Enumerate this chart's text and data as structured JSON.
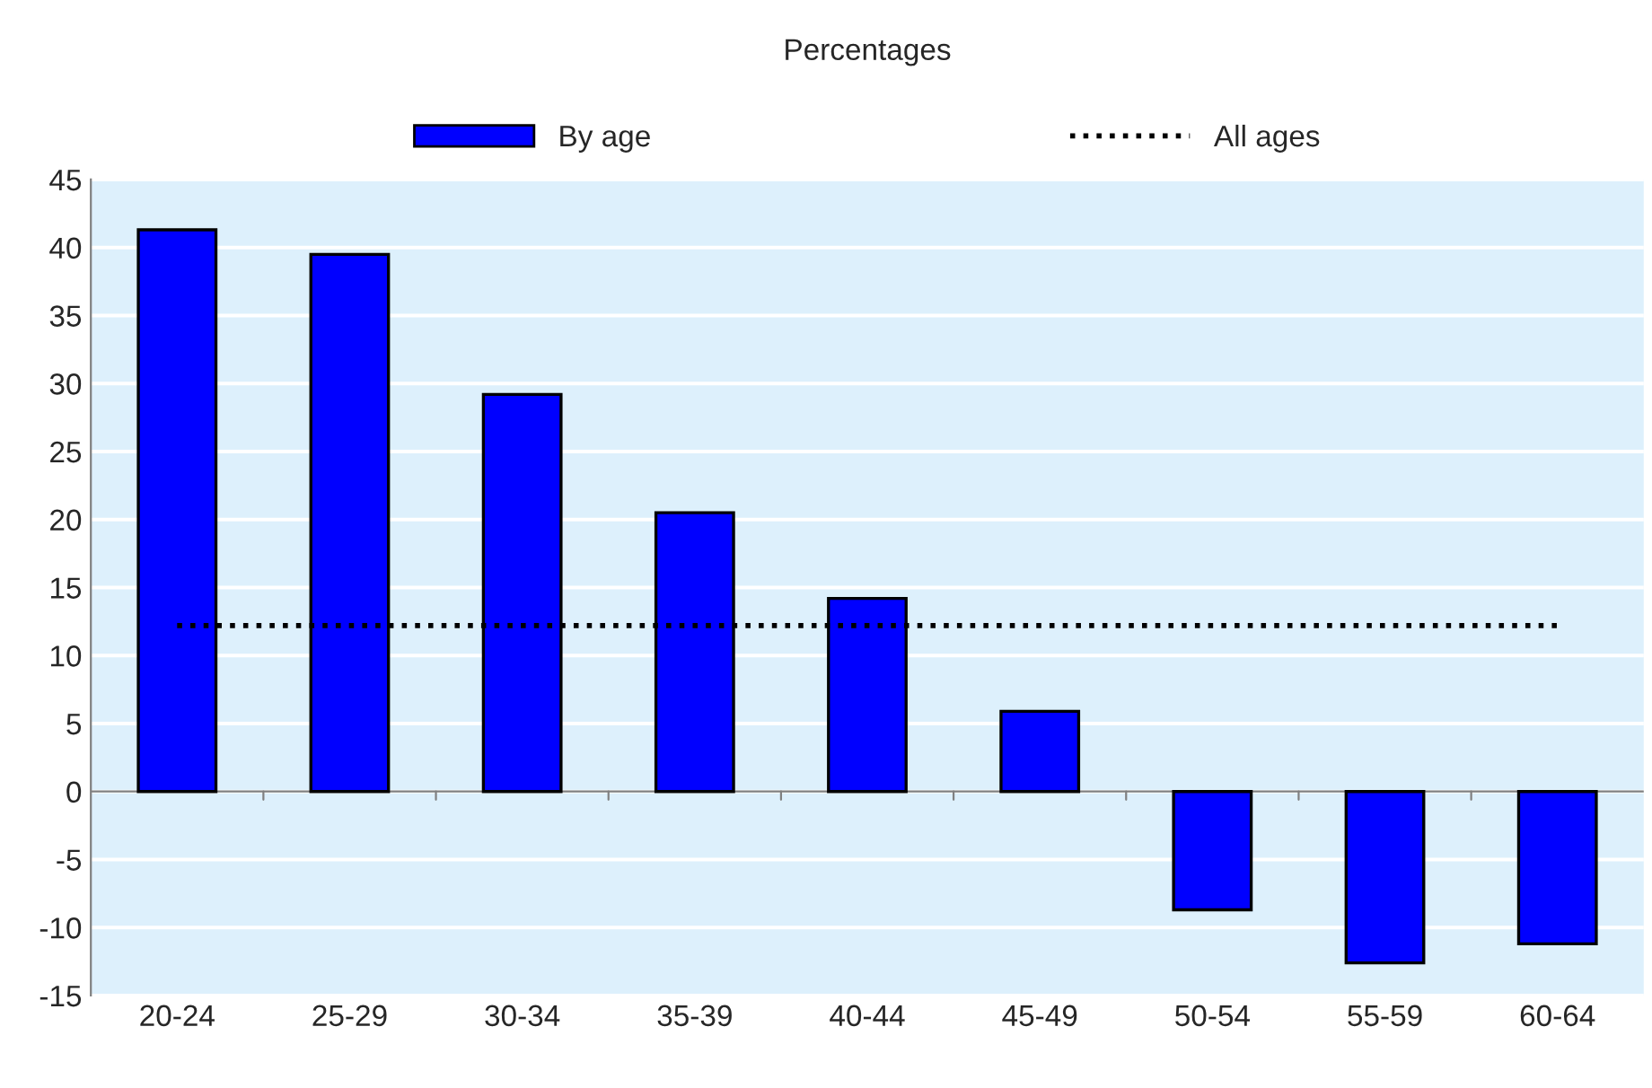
{
  "chart_data": {
    "type": "bar",
    "title": "Percentages",
    "categories": [
      "20-24",
      "25-29",
      "30-34",
      "35-39",
      "40-44",
      "45-49",
      "50-54",
      "55-59",
      "60-64"
    ],
    "series": [
      {
        "name": "By age",
        "color": "#0000ff",
        "values": [
          41.3,
          39.5,
          29.2,
          20.5,
          14.2,
          5.9,
          -8.7,
          -12.6,
          -11.2
        ]
      },
      {
        "name": "All ages",
        "type": "line",
        "color": "#000000",
        "line_style": "dotted",
        "values": [
          12.2,
          12.2,
          12.2,
          12.2,
          12.2,
          12.2,
          12.2,
          12.2,
          12.2
        ]
      }
    ],
    "ylim": [
      -15,
      45
    ],
    "yticks": [
      -15,
      -10,
      -5,
      0,
      5,
      10,
      15,
      20,
      25,
      30,
      35,
      40,
      45
    ],
    "grid": "y",
    "legend": "top"
  }
}
